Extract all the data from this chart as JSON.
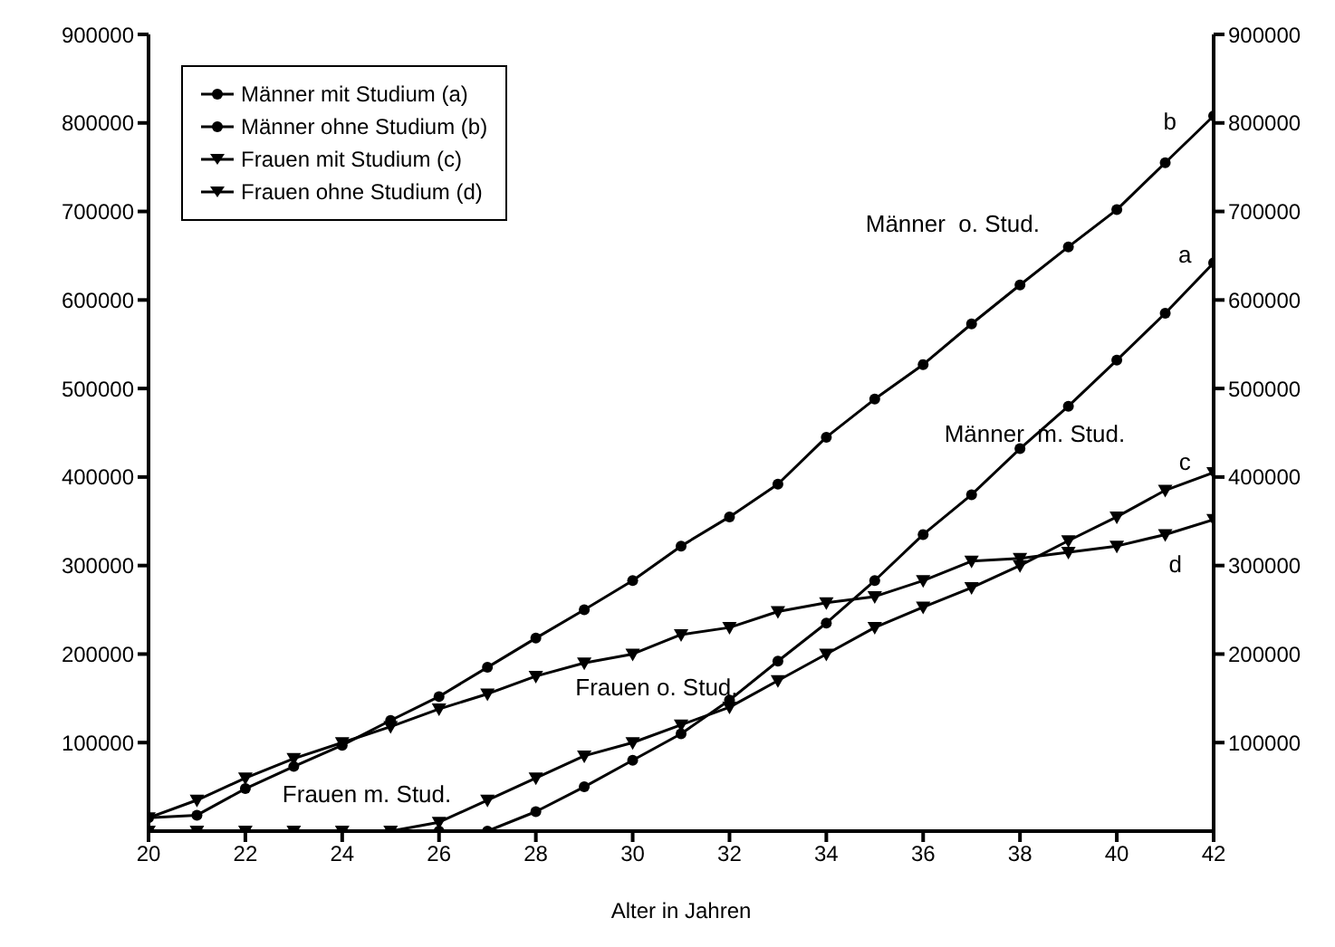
{
  "chart_data": {
    "type": "line",
    "xlabel": "Alter in Jahren",
    "x": [
      20,
      21,
      22,
      23,
      24,
      25,
      26,
      27,
      28,
      29,
      30,
      31,
      32,
      33,
      34,
      35,
      36,
      37,
      38,
      39,
      40,
      41,
      42
    ],
    "series": [
      {
        "name": "Männer mit Studium (a)",
        "color": "#000000",
        "marker": "circle",
        "values": [
          0,
          0,
          0,
          0,
          0,
          0,
          0,
          0,
          22000,
          50000,
          80000,
          110000,
          148000,
          192000,
          235000,
          283000,
          335000,
          380000,
          432000,
          480000,
          532000,
          585000,
          642000
        ]
      },
      {
        "name": "Männer ohne Studium (b)",
        "color": "#000000",
        "marker": "circle",
        "values": [
          15000,
          18000,
          48000,
          73000,
          97000,
          125000,
          152000,
          185000,
          218000,
          250000,
          283000,
          322000,
          355000,
          392000,
          445000,
          488000,
          527000,
          573000,
          617000,
          660000,
          702000,
          755000,
          808000
        ]
      },
      {
        "name": "Frauen mit Studium (c)",
        "color": "#000000",
        "marker": "triangle",
        "values": [
          0,
          0,
          0,
          0,
          0,
          0,
          10000,
          35000,
          60000,
          85000,
          100000,
          120000,
          140000,
          170000,
          200000,
          230000,
          253000,
          275000,
          300000,
          328000,
          355000,
          385000,
          405000
        ]
      },
      {
        "name": "Frauen ohne Studium (d)",
        "color": "#000000",
        "marker": "triangle",
        "values": [
          15000,
          35000,
          60000,
          82000,
          100000,
          118000,
          138000,
          155000,
          175000,
          190000,
          200000,
          222000,
          230000,
          248000,
          258000,
          265000,
          283000,
          305000,
          308000,
          315000,
          322000,
          335000,
          352000
        ]
      }
    ],
    "xlim": [
      20,
      42
    ],
    "xticks": [
      20,
      22,
      24,
      26,
      28,
      30,
      32,
      34,
      36,
      38,
      40,
      42
    ],
    "ylim": [
      0,
      900000
    ],
    "yticks": [
      100000,
      200000,
      300000,
      400000,
      500000,
      600000,
      700000,
      800000,
      900000
    ],
    "y2lim": [
      0,
      900000
    ],
    "y2ticks": [
      100000,
      200000,
      300000,
      400000,
      500000,
      600000,
      700000,
      800000,
      900000
    ],
    "annotations": [
      "b",
      "Männer  o. Stud.",
      "a",
      "Männer  m. Stud.",
      "c",
      "d",
      "Frauen o. Stud.",
      "Frauen m. Stud."
    ],
    "legend": "top left",
    "grid": false,
    "line_style": "solid"
  }
}
